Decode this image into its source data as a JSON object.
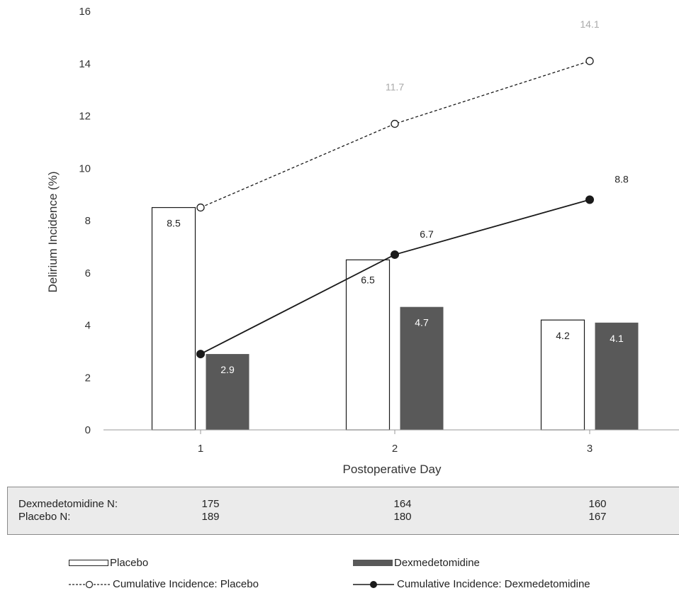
{
  "chart_data": {
    "type": "bar",
    "ylabel": "Delirium Incidence (%)",
    "xlabel": "Postoperative Day",
    "categories": [
      "1",
      "2",
      "3"
    ],
    "ylim": [
      0,
      16
    ],
    "yticks": [
      "0",
      "2",
      "4",
      "6",
      "8",
      "10",
      "12",
      "14",
      "16"
    ],
    "grid": false,
    "series": [
      {
        "name": "Placebo",
        "kind": "bar",
        "style": "open",
        "values": [
          8.5,
          6.5,
          4.2
        ],
        "labels": [
          "8.5",
          "6.5",
          "4.2"
        ]
      },
      {
        "name": "Dexmedetomidine",
        "kind": "bar",
        "style": "filled",
        "color": "#595959",
        "values": [
          2.9,
          4.7,
          4.1
        ],
        "labels": [
          "2.9",
          "4.7",
          "4.1"
        ]
      },
      {
        "name": "Cumulative Incidence: Placebo",
        "kind": "line",
        "style": "dashed-open-markers",
        "values": [
          8.5,
          11.7,
          14.1
        ],
        "labels": [
          "",
          "11.7",
          "14.1"
        ]
      },
      {
        "name": "Cumulative Incidence: Dexmedetomidine",
        "kind": "line",
        "style": "solid-filled-markers",
        "values": [
          2.9,
          6.7,
          8.8
        ],
        "labels": [
          "",
          "6.7",
          "8.8"
        ]
      }
    ],
    "legend_placement": "bottom"
  },
  "ntable": {
    "rows": [
      {
        "label": "Dexmedetomidine N:",
        "values": [
          "175",
          "164",
          "160"
        ]
      },
      {
        "label": "Placebo N:",
        "values": [
          "189",
          "180",
          "167"
        ]
      }
    ]
  },
  "colors": {
    "bar_filled": "#595959",
    "line": "#1a1a1a",
    "axis": "#999999",
    "label_light": "#aaaaaa",
    "label_dark": "#222222",
    "table_bg": "#ebebeb"
  }
}
